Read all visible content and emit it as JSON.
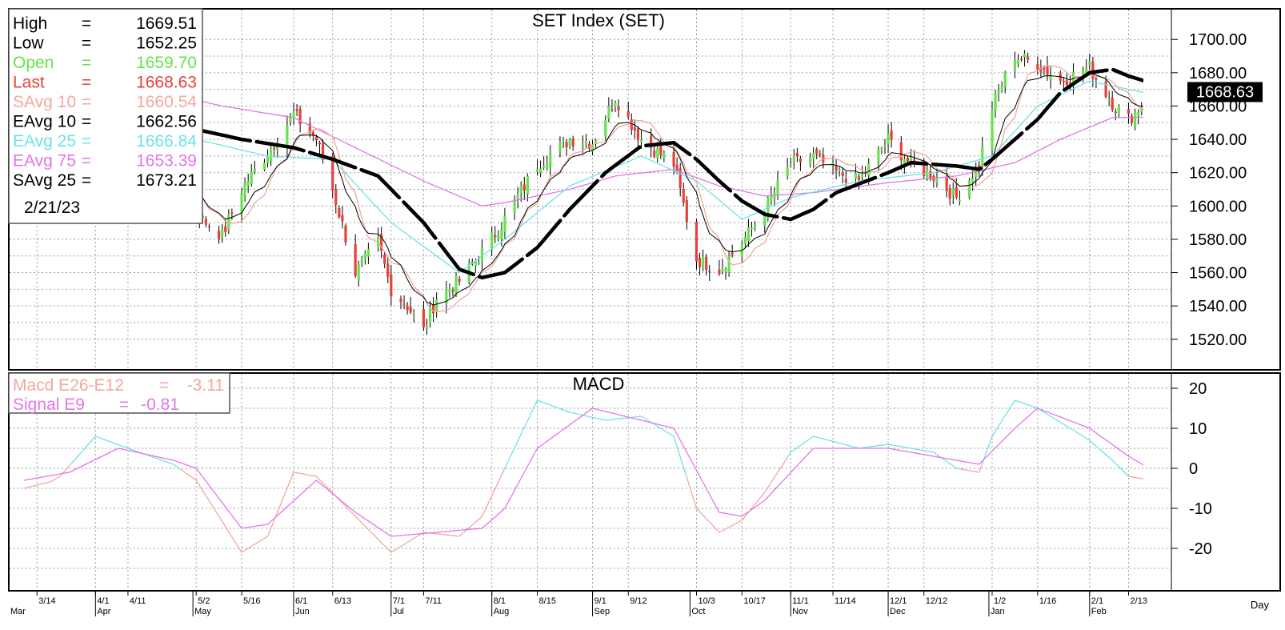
{
  "chart_data": [
    {
      "type": "candlestick",
      "title": "SET  Index  (SET)",
      "ylim": [
        1505,
        1715
      ],
      "y_ticks": [
        "1700.00",
        "1680.00",
        "1660.00",
        "1640.00",
        "1620.00",
        "1600.00",
        "1580.00",
        "1560.00",
        "1540.00",
        "1520.00"
      ],
      "last_marker": "1668.63",
      "legend": [
        {
          "label": "High",
          "value": "1669.51",
          "color": "#000000"
        },
        {
          "label": "Low",
          "value": "1652.25",
          "color": "#000000"
        },
        {
          "label": "Open",
          "value": "1659.70",
          "color": "#66e24b"
        },
        {
          "label": "Last",
          "value": "1668.63",
          "color": "#e8403a"
        },
        {
          "label": "SAvg  10",
          "value": "1660.54",
          "color": "#f1a99e"
        },
        {
          "label": "EAvg  10",
          "value": "1662.56",
          "color": "#000000"
        },
        {
          "label": "EAvg  25",
          "value": "1666.84",
          "color": "#6fe2e8"
        },
        {
          "label": "EAvg  75",
          "value": "1653.39",
          "color": "#e276e8"
        },
        {
          "label": "SAvg  25",
          "value": "1673.21",
          "color": "#000000"
        }
      ],
      "legend_date": "2/21/23",
      "colors": {
        "up": "#66e24b",
        "down": "#e8403a",
        "savg10": "#f1a99e",
        "eavg10": "#000000",
        "eavg25": "#6fe2e8",
        "eavg75": "#e276e8",
        "savg25": "#000000"
      },
      "price_keypoints": [
        [
          "3/10",
          1625
        ],
        [
          "3/17",
          1605
        ],
        [
          "3/24",
          1630
        ],
        [
          "4/1",
          1648
        ],
        [
          "4/8",
          1660
        ],
        [
          "4/18",
          1632
        ],
        [
          "4/25",
          1610
        ],
        [
          "5/2",
          1595
        ],
        [
          "5/10",
          1582
        ],
        [
          "5/16",
          1610
        ],
        [
          "5/24",
          1632
        ],
        [
          "6/1",
          1655
        ],
        [
          "6/8",
          1640
        ],
        [
          "6/13",
          1610
        ],
        [
          "6/20",
          1560
        ],
        [
          "6/27",
          1578
        ],
        [
          "7/1",
          1550
        ],
        [
          "7/6",
          1540
        ],
        [
          "7/11",
          1525
        ],
        [
          "7/15",
          1545
        ],
        [
          "7/22",
          1555
        ],
        [
          "7/29",
          1572
        ],
        [
          "8/5",
          1592
        ],
        [
          "8/15",
          1625
        ],
        [
          "8/25",
          1640
        ],
        [
          "9/1",
          1638
        ],
        [
          "9/8",
          1665
        ],
        [
          "9/16",
          1640
        ],
        [
          "9/26",
          1625
        ],
        [
          "10/3",
          1568
        ],
        [
          "10/10",
          1562
        ],
        [
          "10/17",
          1578
        ],
        [
          "10/24",
          1598
        ],
        [
          "11/1",
          1625
        ],
        [
          "11/8",
          1630
        ],
        [
          "11/15",
          1620
        ],
        [
          "11/22",
          1615
        ],
        [
          "12/1",
          1640
        ],
        [
          "12/8",
          1625
        ],
        [
          "12/15",
          1618
        ],
        [
          "12/22",
          1605
        ],
        [
          "12/29",
          1625
        ],
        [
          "1/2",
          1660
        ],
        [
          "1/9",
          1690
        ],
        [
          "1/16",
          1685
        ],
        [
          "1/23",
          1675
        ],
        [
          "2/1",
          1683
        ],
        [
          "2/8",
          1662
        ],
        [
          "2/13",
          1652
        ],
        [
          "2/21",
          1668.63
        ]
      ],
      "savg25_keypoints": [
        [
          "3/10",
          1715
        ],
        [
          "4/1",
          1698
        ],
        [
          "4/8",
          1682
        ],
        [
          "4/20",
          1662
        ],
        [
          "5/2",
          1646
        ],
        [
          "5/16",
          1640
        ],
        [
          "6/1",
          1635
        ],
        [
          "6/13",
          1628
        ],
        [
          "6/27",
          1618
        ],
        [
          "7/11",
          1590
        ],
        [
          "7/22",
          1562
        ],
        [
          "7/29",
          1557
        ],
        [
          "8/5",
          1560
        ],
        [
          "8/15",
          1575
        ],
        [
          "8/25",
          1598
        ],
        [
          "9/5",
          1620
        ],
        [
          "9/16",
          1636
        ],
        [
          "9/26",
          1638
        ],
        [
          "10/3",
          1628
        ],
        [
          "10/10",
          1615
        ],
        [
          "10/17",
          1603
        ],
        [
          "10/24",
          1595
        ],
        [
          "11/1",
          1592
        ],
        [
          "11/8",
          1598
        ],
        [
          "11/15",
          1608
        ],
        [
          "12/1",
          1620
        ],
        [
          "12/8",
          1626
        ],
        [
          "12/15",
          1625
        ],
        [
          "12/22",
          1624
        ],
        [
          "12/29",
          1622
        ],
        [
          "1/2",
          1628
        ],
        [
          "1/9",
          1640
        ],
        [
          "1/16",
          1652
        ],
        [
          "1/23",
          1668
        ],
        [
          "2/1",
          1680
        ],
        [
          "2/8",
          1682
        ],
        [
          "2/13",
          1678
        ],
        [
          "2/21",
          1673.21
        ]
      ],
      "eavg75_keypoints": [
        [
          "3/10",
          1670
        ],
        [
          "4/18",
          1670
        ],
        [
          "5/10",
          1660
        ],
        [
          "6/1",
          1653
        ],
        [
          "6/20",
          1635
        ],
        [
          "7/11",
          1615
        ],
        [
          "7/29",
          1600
        ],
        [
          "8/5",
          1602
        ],
        [
          "8/25",
          1610
        ],
        [
          "9/8",
          1618
        ],
        [
          "9/26",
          1622
        ],
        [
          "10/10",
          1612
        ],
        [
          "10/24",
          1606
        ],
        [
          "11/8",
          1608
        ],
        [
          "12/1",
          1614
        ],
        [
          "12/22",
          1618
        ],
        [
          "1/9",
          1626
        ],
        [
          "1/23",
          1640
        ],
        [
          "2/8",
          1653
        ],
        [
          "2/21",
          1653.39
        ]
      ],
      "eavg25_keypoints": [
        [
          "3/10",
          1678
        ],
        [
          "4/8",
          1668
        ],
        [
          "5/2",
          1640
        ],
        [
          "5/24",
          1630
        ],
        [
          "6/13",
          1628
        ],
        [
          "7/1",
          1590
        ],
        [
          "7/22",
          1560
        ],
        [
          "8/5",
          1580
        ],
        [
          "8/25",
          1612
        ],
        [
          "9/16",
          1630
        ],
        [
          "10/3",
          1615
        ],
        [
          "10/17",
          1592
        ],
        [
          "11/1",
          1605
        ],
        [
          "11/22",
          1615
        ],
        [
          "12/15",
          1620
        ],
        [
          "1/2",
          1630
        ],
        [
          "1/16",
          1660
        ],
        [
          "2/1",
          1675
        ],
        [
          "2/13",
          1670
        ],
        [
          "2/21",
          1666.84
        ]
      ]
    },
    {
      "type": "line",
      "title": "MACD",
      "ylim": [
        -30,
        23
      ],
      "y_ticks": [
        "20",
        "10",
        "0",
        "-10",
        "-20"
      ],
      "legend": [
        {
          "label": "Macd  E26-E12",
          "value": "-3.11",
          "color": "#f1a99e"
        },
        {
          "label": "Signal  E9",
          "value": "-0.81",
          "color": "#e276e8"
        }
      ],
      "series": [
        {
          "name": "Macd  E26-E12",
          "color": "#6fe2e8",
          "color_negative": "#f1a99e",
          "keypoints": [
            [
              "3/10",
              -5
            ],
            [
              "3/20",
              -3
            ],
            [
              "4/1",
              8
            ],
            [
              "4/11",
              5
            ],
            [
              "4/25",
              1
            ],
            [
              "5/2",
              -3
            ],
            [
              "5/16",
              -21
            ],
            [
              "5/24",
              -17
            ],
            [
              "6/1",
              -1
            ],
            [
              "6/8",
              -2
            ],
            [
              "6/20",
              -12
            ],
            [
              "7/1",
              -21
            ],
            [
              "7/11",
              -16
            ],
            [
              "7/22",
              -17
            ],
            [
              "7/29",
              -12
            ],
            [
              "8/5",
              0
            ],
            [
              "8/15",
              17
            ],
            [
              "8/25",
              14
            ],
            [
              "9/5",
              12
            ],
            [
              "9/16",
              13
            ],
            [
              "9/26",
              8
            ],
            [
              "10/3",
              -10
            ],
            [
              "10/10",
              -16
            ],
            [
              "10/17",
              -13
            ],
            [
              "10/24",
              -6
            ],
            [
              "11/1",
              4
            ],
            [
              "11/8",
              8
            ],
            [
              "11/22",
              5
            ],
            [
              "12/1",
              6
            ],
            [
              "12/15",
              4
            ],
            [
              "12/22",
              0
            ],
            [
              "12/29",
              -1
            ],
            [
              "1/2",
              8
            ],
            [
              "1/9",
              17
            ],
            [
              "1/16",
              15
            ],
            [
              "2/1",
              7
            ],
            [
              "2/8",
              2
            ],
            [
              "2/13",
              -2
            ],
            [
              "2/21",
              -3.11
            ]
          ]
        },
        {
          "name": "Signal  E9",
          "color": "#e276e8",
          "keypoints": [
            [
              "3/10",
              -3
            ],
            [
              "3/24",
              -1
            ],
            [
              "4/8",
              5
            ],
            [
              "4/25",
              2
            ],
            [
              "5/2",
              0
            ],
            [
              "5/16",
              -15
            ],
            [
              "5/24",
              -14
            ],
            [
              "6/8",
              -3
            ],
            [
              "6/20",
              -11
            ],
            [
              "7/1",
              -17
            ],
            [
              "7/15",
              -16
            ],
            [
              "7/29",
              -15
            ],
            [
              "8/5",
              -10
            ],
            [
              "8/15",
              5
            ],
            [
              "9/1",
              15
            ],
            [
              "9/16",
              12
            ],
            [
              "9/26",
              10
            ],
            [
              "10/10",
              -11
            ],
            [
              "10/17",
              -12
            ],
            [
              "10/24",
              -8
            ],
            [
              "11/8",
              5
            ],
            [
              "12/1",
              5
            ],
            [
              "12/15",
              3
            ],
            [
              "12/29",
              1
            ],
            [
              "1/9",
              10
            ],
            [
              "1/16",
              15
            ],
            [
              "2/1",
              10
            ],
            [
              "2/13",
              3
            ],
            [
              "2/21",
              -0.81
            ]
          ]
        }
      ]
    }
  ],
  "x_axis": {
    "ticks": [
      "3/14",
      "4/1",
      "4/11",
      "5/2",
      "5/16",
      "6/1",
      "6/13",
      "7/1",
      "7/11",
      "8/1",
      "8/15",
      "9/1",
      "9/12",
      "10/3",
      "10/17",
      "11/1",
      "11/14",
      "12/1",
      "12/12",
      "1/2",
      "1/16",
      "2/1",
      "2/13"
    ],
    "months": [
      "Mar",
      "Apr",
      "May",
      "Jun",
      "Jul",
      "Aug",
      "Sep",
      "Oct",
      "Nov",
      "Dec",
      "Jan",
      "Feb"
    ],
    "unit_label": "Day"
  }
}
